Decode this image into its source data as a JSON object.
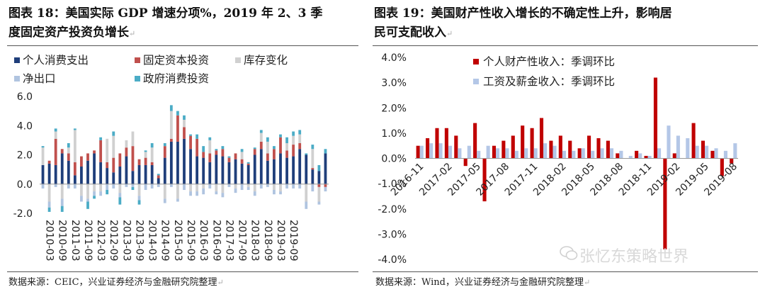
{
  "left_panel": {
    "title_line1": "图表 18：美国实际 GDP 增速分项%，2019 年 2、3 季",
    "title_line2": "度固定资产投资负增长",
    "source": "数据来源：CEIC，兴业证券经济与金融研究院整理"
  },
  "right_panel": {
    "title_line1": "图表 19：美国财产性收入增长的不确定性上升，影响居",
    "title_line2": "民可支配收入",
    "source": "数据来源：Wind，兴业证券经济与金融研究院整理"
  },
  "watermark": "张忆东策略世界",
  "chart_data": [
    {
      "type": "bar",
      "stacked": true,
      "title": "",
      "ylim": [
        -2,
        6
      ],
      "yticks": [
        "6.0",
        "4.0",
        "2.0",
        "0.0",
        "-2.0"
      ],
      "ytick_values": [
        6,
        4,
        2,
        0,
        -2
      ],
      "x_tick_labels": [
        "2010-03",
        "2010-09",
        "2011-03",
        "2011-09",
        "2012-03",
        "2012-09",
        "2013-03",
        "2013-09",
        "2014-03",
        "2014-09",
        "2015-03",
        "2015-09",
        "2016-03",
        "2016-09",
        "2017-03",
        "2017-09",
        "2018-03",
        "2018-09",
        "2019-03",
        "2019-09"
      ],
      "legend": [
        "个人消费支出",
        "固定资本投资",
        "库存变化",
        "净出口",
        "政府消费投资"
      ],
      "series": [
        {
          "name": "个人消费支出",
          "color": "#1f3e7a",
          "values": [
            1.3,
            1.4,
            1.3,
            2.1,
            1.6,
            0.6,
            1.2,
            1.6,
            2.1,
            1.5,
            1.1,
            0.8,
            1.2,
            1.9,
            0.9,
            1.3,
            1.3,
            1.3,
            0.4,
            1.8,
            2.9,
            2.9,
            3.1,
            2.4,
            1.9,
            1.8,
            1.5,
            2.0,
            1.9,
            1.5,
            1.7,
            1.4,
            1.3,
            2.0,
            2.4,
            1.6,
            1.7,
            2.1,
            1.8,
            1.9,
            2.4,
            2.0,
            1.0,
            0.9,
            2.1
          ]
        },
        {
          "name": "固定资本投资",
          "color": "#c0504d",
          "values": [
            0.0,
            0.2,
            1.8,
            0.3,
            0.5,
            0.9,
            0.7,
            0.5,
            0.2,
            1.5,
            0.4,
            1.0,
            0.9,
            0.6,
            1.7,
            0.4,
            0.5,
            0.2,
            0.2,
            0.8,
            0.2,
            1.8,
            0.8,
            0.9,
            1.2,
            0.4,
            0.6,
            0.3,
            0.5,
            0.3,
            0.4,
            0.3,
            0.1,
            0.4,
            0.5,
            0.5,
            0.7,
            1.1,
            0.5,
            0.8,
            0.4,
            0.0,
            0.1,
            -0.2,
            -0.2
          ]
        },
        {
          "name": "库存变化",
          "color": "#d0d0d0",
          "values": [
            1.2,
            -1.2,
            0.5,
            -1.0,
            0.4,
            2.2,
            -0.8,
            -1.0,
            -0.5,
            -0.5,
            1.6,
            1.5,
            -0.6,
            0.5,
            1.0,
            -0.8,
            0.4,
            1.0,
            0.0,
            -1.0,
            1.9,
            -1.0,
            0.5,
            -0.5,
            -0.5,
            -0.3,
            0.9,
            -0.5,
            -0.6,
            0.0,
            -0.3,
            0.5,
            -0.2,
            -0.5,
            0.6,
            0.8,
            -0.4,
            -0.5,
            0.5,
            0.6,
            0.6,
            -1.2,
            1.3,
            -1.0,
            0.0
          ]
        },
        {
          "name": "净出口",
          "color": "#b0c4e0",
          "values": [
            -0.3,
            -0.4,
            -0.2,
            -0.5,
            -0.3,
            -0.3,
            -0.4,
            -0.2,
            -0.3,
            -0.3,
            -0.4,
            -0.3,
            -0.3,
            -0.2,
            -0.2,
            -0.3,
            -0.4,
            -0.3,
            -0.2,
            -0.3,
            -0.2,
            -0.2,
            -0.4,
            -0.3,
            -0.3,
            -0.4,
            -0.3,
            -0.2,
            -0.3,
            -0.2,
            -0.3,
            -0.4,
            -0.2,
            -0.3,
            -0.3,
            -0.2,
            -0.3,
            -0.2,
            -0.3,
            -0.3,
            -0.3,
            -0.5,
            -0.5,
            -0.2,
            -0.3
          ]
        },
        {
          "name": "政府消费投资",
          "color": "#4bacc6",
          "values": [
            0.1,
            -0.3,
            0.2,
            -0.4,
            0.3,
            0.1,
            0.0,
            -0.5,
            -0.2,
            0.2,
            -0.3,
            0.3,
            -0.5,
            0.0,
            -0.2,
            -0.3,
            0.1,
            0.3,
            0.1,
            0.2,
            0.4,
            0.3,
            0.3,
            0.1,
            0.3,
            0.4,
            0.2,
            0.1,
            0.2,
            0.1,
            0.0,
            0.2,
            0.1,
            0.1,
            0.2,
            0.3,
            0.2,
            0.2,
            0.4,
            0.3,
            0.3,
            0.1,
            0.3,
            0.4,
            0.3
          ]
        }
      ]
    },
    {
      "type": "bar",
      "stacked": false,
      "title": "",
      "ylim": [
        -4,
        4
      ],
      "yticks": [
        "4.0%",
        "3.0%",
        "2.0%",
        "1.0%",
        "0.0%",
        "-1.0%",
        "-2.0%",
        "-3.0%",
        "-4.0%"
      ],
      "ytick_values": [
        4,
        3,
        2,
        1,
        0,
        -1,
        -2,
        -3,
        -4
      ],
      "x_tick_labels": [
        "2016-11",
        "2017-02",
        "2017-05",
        "2017-08",
        "2017-11",
        "2018-02",
        "2018-05",
        "2018-08",
        "2018-11",
        "2019-02",
        "2019-05",
        "2019-08"
      ],
      "legend": [
        "个人财产性收入：季调环比",
        "工资及薪金收入：季调环比"
      ],
      "series": [
        {
          "name": "个人财产性收入：季调环比",
          "color": "#c00000",
          "values": [
            0.5,
            0.8,
            1.2,
            1.2,
            0.9,
            -0.3,
            1.4,
            -1.7,
            0.5,
            0.7,
            0.9,
            1.3,
            1.2,
            1.6,
            0.7,
            0.9,
            0.7,
            0.4,
            0.9,
            0.8,
            0.7,
            0.2,
            0.0,
            0.3,
            0.1,
            3.2,
            -3.6,
            0.2,
            0.0,
            1.4,
            0.7,
            0.3,
            -0.7,
            -0.2
          ]
        },
        {
          "name": "工资及薪金收入：季调环比",
          "color": "#b4c7e7",
          "values": [
            0.5,
            0.6,
            0.6,
            0.5,
            0.4,
            0.5,
            0.3,
            0.5,
            0.4,
            0.4,
            0.3,
            0.4,
            0.4,
            0.6,
            0.5,
            0.3,
            0.3,
            0.4,
            0.3,
            0.4,
            0.4,
            0.3,
            0.1,
            0.2,
            0.1,
            0.4,
            1.3,
            0.9,
            0.8,
            0.5,
            0.5,
            0.4,
            0.3,
            0.6
          ]
        }
      ]
    }
  ]
}
